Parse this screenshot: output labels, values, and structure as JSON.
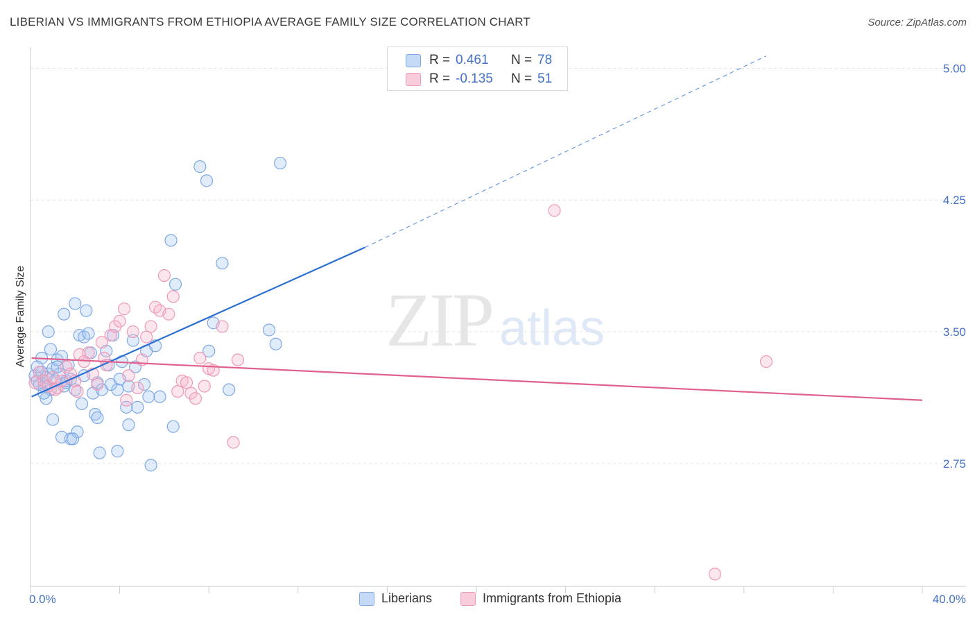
{
  "title": "LIBERIAN VS IMMIGRANTS FROM ETHIOPIA AVERAGE FAMILY SIZE CORRELATION CHART",
  "source": "Source: ZipAtlas.com",
  "watermark": {
    "zip": "ZIP",
    "atlas": "atlas"
  },
  "legend": {
    "rows": [
      {
        "r_label": "R =",
        "r_value": "0.461",
        "n_label": "N =",
        "n_value": "78",
        "color": "#aac8f0"
      },
      {
        "r_label": "R =",
        "r_value": "-0.135",
        "n_label": "N =",
        "n_value": "51",
        "color": "#f5b8cc"
      }
    ]
  },
  "bottom_legend": [
    {
      "label": "Liberians",
      "color": "#aac8f0"
    },
    {
      "label": "Immigrants from Ethiopia",
      "color": "#f5b8cc"
    }
  ],
  "chart_data": {
    "type": "scatter",
    "title": "LIBERIAN VS IMMIGRANTS FROM ETHIOPIA AVERAGE FAMILY SIZE CORRELATION CHART",
    "xlabel": "",
    "ylabel": "Average Family Size",
    "xlim": [
      0,
      40
    ],
    "ylim": [
      2.05,
      5.12
    ],
    "x_tick_labels": [
      "0.0%",
      "40.0%"
    ],
    "y_ticks": [
      2.75,
      3.5,
      4.25,
      5.0
    ],
    "y_tick_labels": [
      "2.75",
      "3.50",
      "4.25",
      "5.00"
    ],
    "grid": true,
    "legend_placement": "top-center",
    "series": [
      {
        "name": "Liberians",
        "color": "#6f9fe0",
        "trend": {
          "x0": 0.05,
          "y0": 3.13,
          "x1": 15.0,
          "y1": 3.98,
          "dash_to_x": 33.0,
          "dash_to_y": 5.07,
          "color": "#2a6fd1"
        },
        "points": [
          [
            0.2,
            3.25
          ],
          [
            0.3,
            3.22
          ],
          [
            0.4,
            3.2
          ],
          [
            0.5,
            3.27
          ],
          [
            0.6,
            3.19
          ],
          [
            0.7,
            3.24
          ],
          [
            0.8,
            3.26
          ],
          [
            0.9,
            3.17
          ],
          [
            1.0,
            3.29
          ],
          [
            1.1,
            3.22
          ],
          [
            1.2,
            3.34
          ],
          [
            1.3,
            3.26
          ],
          [
            1.4,
            3.36
          ],
          [
            1.5,
            3.19
          ],
          [
            1.6,
            3.21
          ],
          [
            1.7,
            3.31
          ],
          [
            0.7,
            3.12
          ],
          [
            0.9,
            3.4
          ],
          [
            1.6,
            3.22
          ],
          [
            1.8,
            3.23
          ],
          [
            2.0,
            3.17
          ],
          [
            2.2,
            3.48
          ],
          [
            2.4,
            3.47
          ],
          [
            2.6,
            3.49
          ],
          [
            0.8,
            3.5
          ],
          [
            1.5,
            3.6
          ],
          [
            2.0,
            3.66
          ],
          [
            2.5,
            3.62
          ],
          [
            2.8,
            3.15
          ],
          [
            3.0,
            3.21
          ],
          [
            3.2,
            3.17
          ],
          [
            3.5,
            3.31
          ],
          [
            3.4,
            3.39
          ],
          [
            3.7,
            3.48
          ],
          [
            3.9,
            3.17
          ],
          [
            4.1,
            3.33
          ],
          [
            4.3,
            3.07
          ],
          [
            4.4,
            3.19
          ],
          [
            4.6,
            3.45
          ],
          [
            4.8,
            3.07
          ],
          [
            1.0,
            3.0
          ],
          [
            1.4,
            2.9
          ],
          [
            1.8,
            2.89
          ],
          [
            2.1,
            2.93
          ],
          [
            2.9,
            3.03
          ],
          [
            3.1,
            2.81
          ],
          [
            3.9,
            2.82
          ],
          [
            4.4,
            2.97
          ],
          [
            5.2,
            3.39
          ],
          [
            5.3,
            3.13
          ],
          [
            5.6,
            3.42
          ],
          [
            5.8,
            3.13
          ],
          [
            6.4,
            2.96
          ],
          [
            5.4,
            2.74
          ],
          [
            6.5,
            3.77
          ],
          [
            6.3,
            4.02
          ],
          [
            7.6,
            4.44
          ],
          [
            7.9,
            4.36
          ],
          [
            8.6,
            3.89
          ],
          [
            8.2,
            3.55
          ],
          [
            8.0,
            3.39
          ],
          [
            8.9,
            3.17
          ],
          [
            10.7,
            3.51
          ],
          [
            11.0,
            3.43
          ],
          [
            11.2,
            4.46
          ],
          [
            2.3,
            3.09
          ],
          [
            1.9,
            2.89
          ],
          [
            3.0,
            3.01
          ],
          [
            4.7,
            3.3
          ],
          [
            5.1,
            3.2
          ],
          [
            0.5,
            3.35
          ],
          [
            1.2,
            3.3
          ],
          [
            2.4,
            3.25
          ],
          [
            3.6,
            3.2
          ],
          [
            0.3,
            3.3
          ],
          [
            0.6,
            3.15
          ],
          [
            2.7,
            3.38
          ],
          [
            4.0,
            3.23
          ]
        ]
      },
      {
        "name": "Immigrants from Ethiopia",
        "color": "#f09ab7",
        "trend": {
          "x0": 0.05,
          "y0": 3.35,
          "x1": 40.0,
          "y1": 3.11,
          "color": "#e06090"
        },
        "points": [
          [
            0.2,
            3.21
          ],
          [
            0.4,
            3.27
          ],
          [
            0.6,
            3.22
          ],
          [
            0.8,
            3.19
          ],
          [
            1.0,
            3.24
          ],
          [
            1.2,
            3.18
          ],
          [
            1.4,
            3.22
          ],
          [
            1.6,
            3.3
          ],
          [
            1.8,
            3.26
          ],
          [
            2.0,
            3.22
          ],
          [
            2.2,
            3.37
          ],
          [
            2.4,
            3.33
          ],
          [
            2.6,
            3.38
          ],
          [
            2.8,
            3.26
          ],
          [
            3.0,
            3.2
          ],
          [
            3.2,
            3.44
          ],
          [
            3.4,
            3.31
          ],
          [
            3.6,
            3.48
          ],
          [
            3.8,
            3.53
          ],
          [
            4.0,
            3.56
          ],
          [
            4.2,
            3.63
          ],
          [
            4.4,
            3.25
          ],
          [
            4.6,
            3.5
          ],
          [
            4.8,
            3.18
          ],
          [
            5.0,
            3.34
          ],
          [
            5.2,
            3.47
          ],
          [
            5.4,
            3.53
          ],
          [
            5.6,
            3.64
          ],
          [
            5.8,
            3.62
          ],
          [
            6.0,
            3.82
          ],
          [
            6.2,
            3.6
          ],
          [
            6.4,
            3.7
          ],
          [
            6.6,
            3.16
          ],
          [
            6.8,
            3.22
          ],
          [
            7.0,
            3.21
          ],
          [
            7.2,
            3.15
          ],
          [
            7.4,
            3.12
          ],
          [
            7.6,
            3.35
          ],
          [
            7.8,
            3.19
          ],
          [
            8.0,
            3.29
          ],
          [
            8.2,
            3.28
          ],
          [
            8.6,
            3.53
          ],
          [
            9.1,
            2.87
          ],
          [
            9.3,
            3.34
          ],
          [
            4.3,
            3.11
          ],
          [
            3.3,
            3.35
          ],
          [
            2.1,
            3.16
          ],
          [
            1.1,
            3.17
          ],
          [
            23.5,
            4.19
          ],
          [
            33.0,
            3.33
          ],
          [
            30.7,
            2.12
          ]
        ]
      }
    ]
  }
}
